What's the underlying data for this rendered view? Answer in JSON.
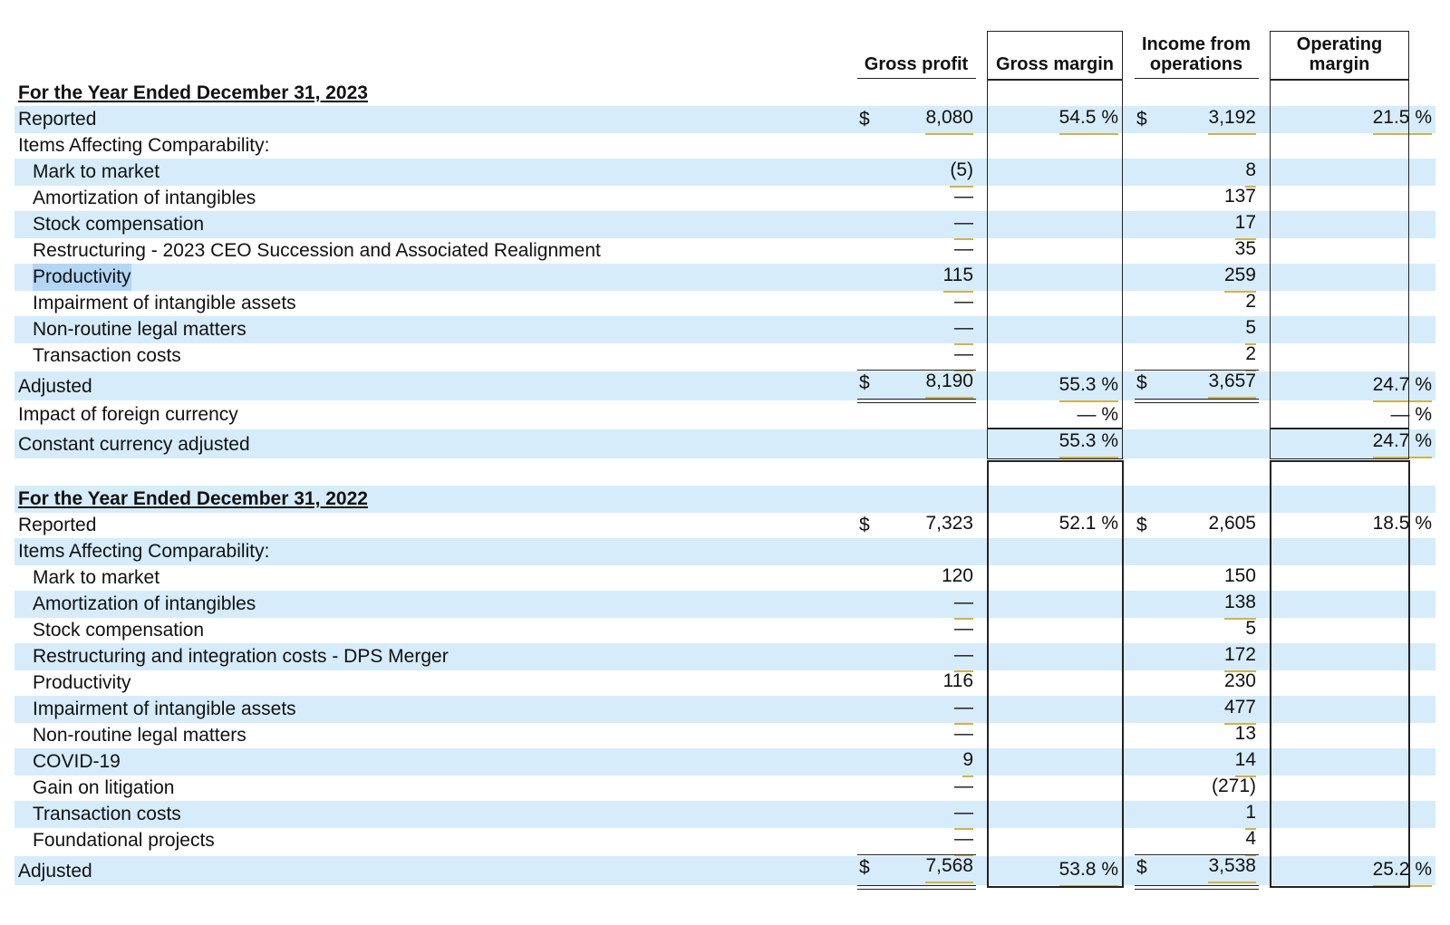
{
  "headers": {
    "gross_profit": "Gross profit",
    "gross_margin": "Gross margin",
    "income_from_operations": "Income from operations",
    "operating_margin": "Operating margin"
  },
  "sections": [
    {
      "title": "For the Year Ended December 31, 2023",
      "reported": {
        "label": "Reported",
        "gross_profit": "8,080",
        "gross_margin": "54.5 %",
        "income": "3,192",
        "operating_margin": "21.5 %"
      },
      "iac_label": "Items Affecting Comparability:",
      "items": [
        {
          "label": "Mark to market",
          "gross_profit": "(5)",
          "income": "8"
        },
        {
          "label": "Amortization of intangibles",
          "gross_profit": "—",
          "income": "137"
        },
        {
          "label": "Stock compensation",
          "gross_profit": "—",
          "income": "17"
        },
        {
          "label": "Restructuring - 2023 CEO Succession and Associated Realignment",
          "gross_profit": "—",
          "income": "35"
        },
        {
          "label": "Productivity",
          "gross_profit": "115",
          "income": "259"
        },
        {
          "label": "Impairment of intangible assets",
          "gross_profit": "—",
          "income": "2"
        },
        {
          "label": "Non-routine legal matters",
          "gross_profit": "—",
          "income": "5"
        },
        {
          "label": "Transaction costs",
          "gross_profit": "—",
          "income": "2"
        }
      ],
      "adjusted": {
        "label": "Adjusted",
        "gross_profit": "8,190",
        "gross_margin": "55.3 %",
        "income": "3,657",
        "operating_margin": "24.7 %"
      },
      "fx": {
        "label": "Impact of foreign currency",
        "gross_margin": "— %",
        "operating_margin": "— %"
      },
      "constant": {
        "label": "Constant currency adjusted",
        "gross_margin": "55.3 %",
        "operating_margin": "24.7 %"
      }
    },
    {
      "title": "For the Year Ended December 31, 2022",
      "reported": {
        "label": "Reported",
        "gross_profit": "7,323",
        "gross_margin": "52.1 %",
        "income": "2,605",
        "operating_margin": "18.5 %"
      },
      "iac_label": "Items Affecting Comparability:",
      "items": [
        {
          "label": "Mark to market",
          "gross_profit": "120",
          "income": "150"
        },
        {
          "label": "Amortization of intangibles",
          "gross_profit": "—",
          "income": "138"
        },
        {
          "label": "Stock compensation",
          "gross_profit": "—",
          "income": "5"
        },
        {
          "label": "Restructuring and integration costs - DPS Merger",
          "gross_profit": "—",
          "income": "172"
        },
        {
          "label": "Productivity",
          "gross_profit": "116",
          "income": "230"
        },
        {
          "label": "Impairment of intangible assets",
          "gross_profit": "—",
          "income": "477"
        },
        {
          "label": "Non-routine legal matters",
          "gross_profit": "—",
          "income": "13"
        },
        {
          "label": "COVID-19",
          "gross_profit": "9",
          "income": "14"
        },
        {
          "label": "Gain on litigation",
          "gross_profit": "—",
          "income": "(271)"
        },
        {
          "label": "Transaction costs",
          "gross_profit": "—",
          "income": "1"
        },
        {
          "label": "Foundational projects",
          "gross_profit": "—",
          "income": "4"
        }
      ],
      "adjusted": {
        "label": "Adjusted",
        "gross_profit": "7,568",
        "gross_margin": "53.8 %",
        "income": "3,538",
        "operating_margin": "25.2 %"
      }
    }
  ],
  "currency_symbol": "$",
  "colors": {
    "row_band": "#d6ecfa",
    "underline": "#d4b24a",
    "selection": "#b3d6f5"
  }
}
